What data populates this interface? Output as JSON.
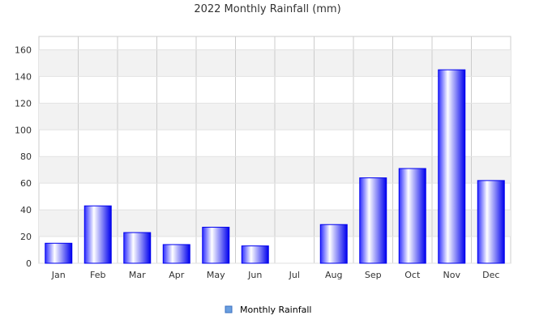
{
  "chart_data": {
    "type": "bar",
    "title": "2022 Monthly Rainfall (mm)",
    "xlabel": "",
    "ylabel": "",
    "categories": [
      "Jan",
      "Feb",
      "Mar",
      "Apr",
      "May",
      "Jun",
      "Jul",
      "Aug",
      "Sep",
      "Oct",
      "Nov",
      "Dec"
    ],
    "series": [
      {
        "name": "Monthly Rainfall",
        "values": [
          15,
          43,
          23,
          14,
          27,
          13,
          0,
          29,
          64,
          71,
          145,
          62
        ]
      }
    ],
    "ylim": [
      0,
      170
    ],
    "yticks": [
      0,
      20,
      40,
      60,
      80,
      100,
      120,
      140,
      160
    ],
    "ytick_labels": [
      "0",
      "20",
      "40",
      "60",
      "80",
      "100",
      "120",
      "140",
      "160"
    ],
    "grid": true,
    "alternating_bands": true,
    "legend_position": "bottom-center",
    "colors": {
      "bar_edge": "#0000ee",
      "bar_light": "#ffffff",
      "bar_dark": "#0000ff",
      "legend_swatch": "#6a9fe0",
      "band": "#f2f2f2",
      "grid": "#cccccc"
    }
  }
}
